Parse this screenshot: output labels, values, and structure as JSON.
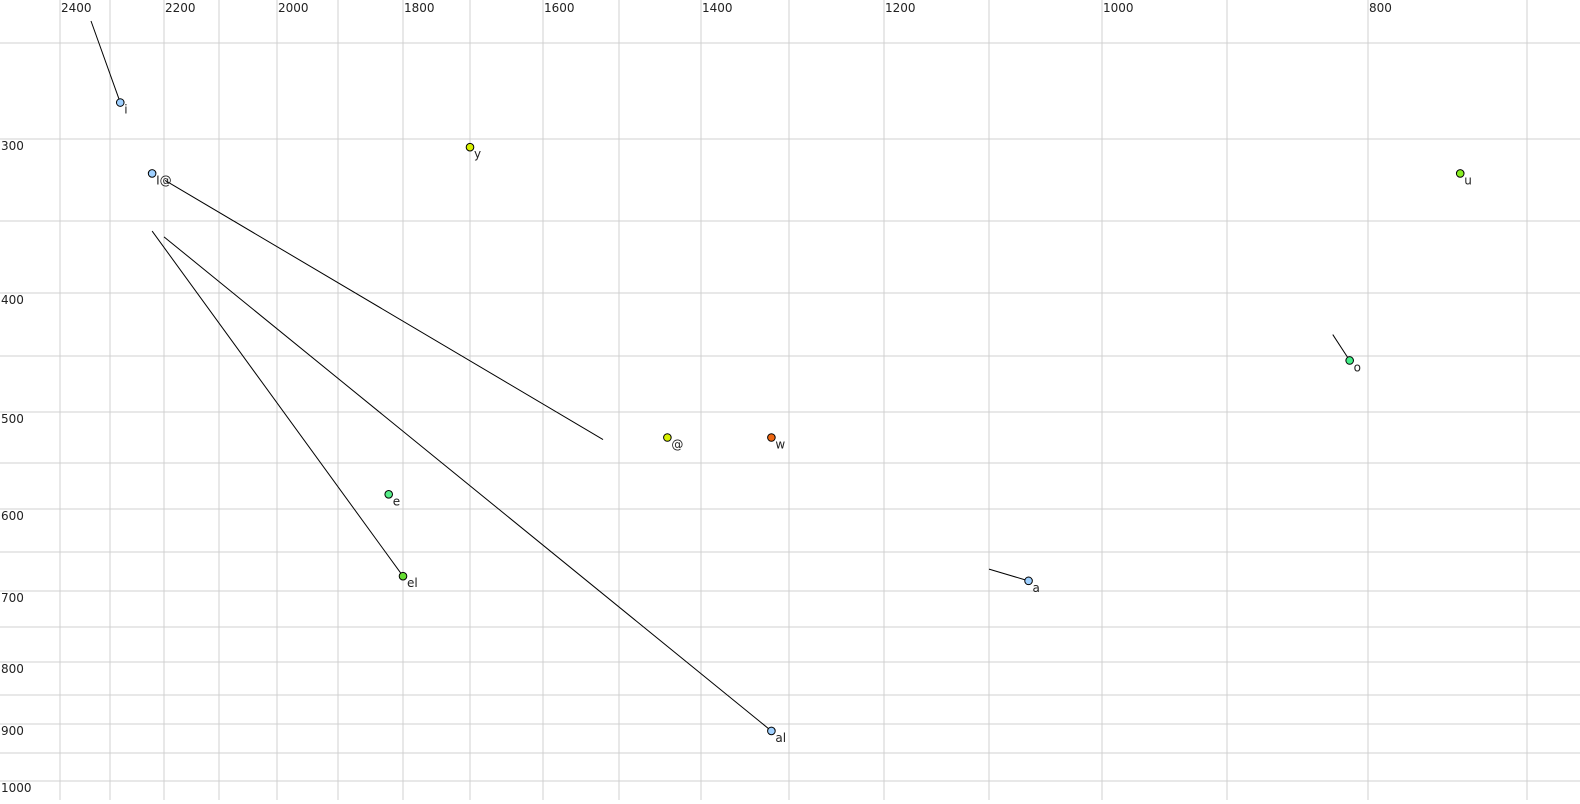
{
  "chart_data": {
    "type": "scatter",
    "title": "",
    "xlabel": "",
    "ylabel": "",
    "x_axis": {
      "reversed": true,
      "scale": "auditory (compressed at high values)",
      "range": [
        2450,
        650
      ],
      "tick_labels": [
        "2400",
        "2200",
        "2000",
        "1800",
        "1600",
        "1400",
        "1200",
        "1000",
        "800"
      ],
      "position": "top"
    },
    "y_axis": {
      "reversed": false,
      "scale": "auditory (compressed at high values)",
      "range": [
        240,
        1000
      ],
      "tick_labels": [
        "300",
        "400",
        "500",
        "600",
        "700",
        "800",
        "900",
        "1000"
      ],
      "position": "left"
    },
    "grid": true,
    "points": [
      {
        "label": "i",
        "x": 2281,
        "y": 281,
        "color": "#9fd0ff",
        "from": {
          "x": 2338,
          "y": 240
        }
      },
      {
        "label": "I@",
        "x": 2222,
        "y": 321,
        "color": "#9fd0ff",
        "to": {
          "x": 1521,
          "y": 527
        }
      },
      {
        "label": "y",
        "x": 1700,
        "y": 305,
        "color": "#d8f000"
      },
      {
        "label": "u",
        "x": 742,
        "y": 321,
        "color": "#88ee22"
      },
      {
        "label": "o",
        "x": 813,
        "y": 454,
        "color": "#44ee88",
        "from": {
          "x": 825,
          "y": 433
        }
      },
      {
        "label": "@",
        "x": 1441,
        "y": 525,
        "color": "#d8f000"
      },
      {
        "label": "w",
        "x": 1320,
        "y": 525,
        "color": "#ee6611"
      },
      {
        "label": "e",
        "x": 1822,
        "y": 584,
        "color": "#55ee88"
      },
      {
        "label": "el",
        "x": 1800,
        "y": 681,
        "color": "#66dd33",
        "from": {
          "x": 2222,
          "y": 357
        }
      },
      {
        "label": "a",
        "x": 1065,
        "y": 687,
        "color": "#9fd0ff",
        "from": {
          "x": 1100,
          "y": 672
        }
      },
      {
        "label": "al",
        "x": 1320,
        "y": 912,
        "color": "#9fd0ff",
        "from": {
          "x": 2200,
          "y": 361
        }
      }
    ]
  }
}
